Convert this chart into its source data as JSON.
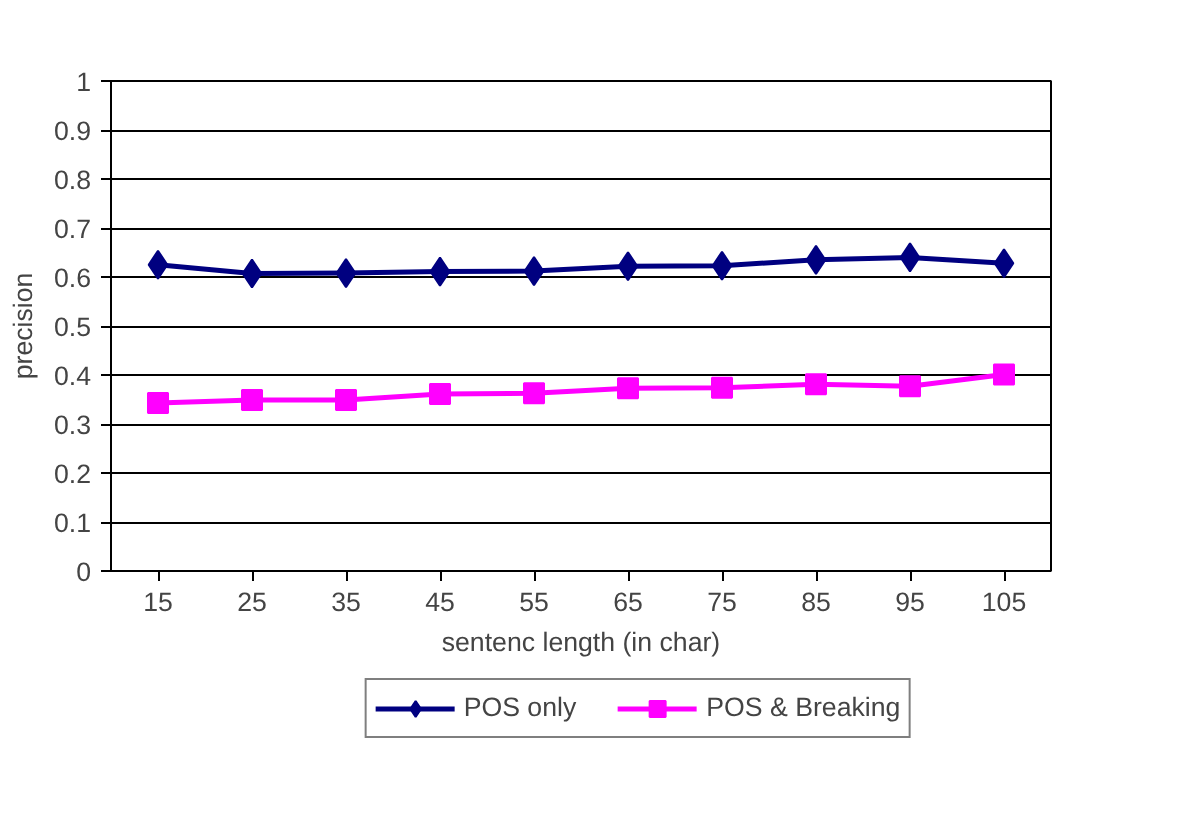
{
  "chart_data": {
    "type": "line",
    "xlabel": "sentenc length (in char)",
    "ylabel": "precision",
    "categories": [
      "15",
      "25",
      "35",
      "45",
      "55",
      "65",
      "75",
      "85",
      "95",
      "105"
    ],
    "series": [
      {
        "name": "POS only",
        "color": "#000080",
        "marker": "diamond",
        "values": [
          0.625,
          0.607,
          0.608,
          0.611,
          0.612,
          0.622,
          0.623,
          0.635,
          0.64,
          0.628
        ]
      },
      {
        "name": "POS & Breaking",
        "color": "#ff00ff",
        "marker": "square",
        "values": [
          0.343,
          0.349,
          0.349,
          0.361,
          0.363,
          0.373,
          0.374,
          0.381,
          0.377,
          0.401
        ]
      }
    ],
    "ylim": [
      0,
      1
    ],
    "yticks": [
      0,
      0.1,
      0.2,
      0.3,
      0.4,
      0.5,
      0.6,
      0.7,
      0.8,
      0.9,
      1
    ],
    "grid": "y",
    "legend": "bottom",
    "line_style": "solid"
  }
}
